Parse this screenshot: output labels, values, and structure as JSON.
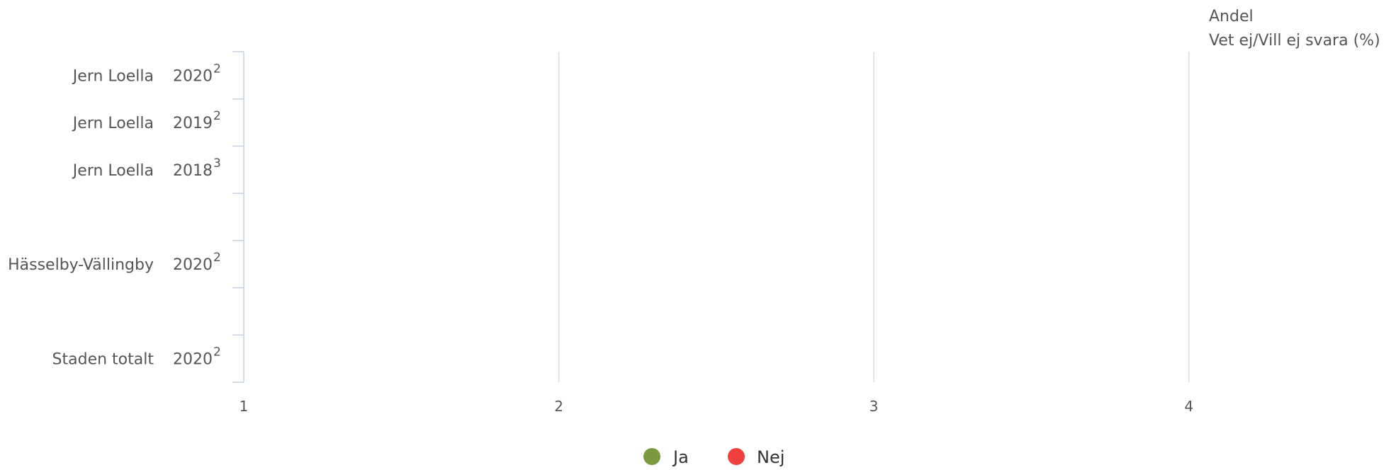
{
  "chart_data": {
    "type": "bar",
    "orientation": "horizontal",
    "title": "Andel",
    "subtitle": "Vet ej/Vill ej svara (%)",
    "categories": [
      {
        "name": "Jern Loella",
        "year": "2020",
        "sup": "2"
      },
      {
        "name": "Jern Loella",
        "year": "2019",
        "sup": "2"
      },
      {
        "name": "Jern Loella",
        "year": "2018",
        "sup": "3"
      },
      {
        "name": "",
        "year": "",
        "sup": ""
      },
      {
        "name": "Hässelby-Vällingby",
        "year": "2020",
        "sup": "2"
      },
      {
        "name": "",
        "year": "",
        "sup": ""
      },
      {
        "name": "Staden totalt",
        "year": "2020",
        "sup": "2"
      }
    ],
    "x_ticks": [
      "1",
      "2",
      "3",
      "4"
    ],
    "xlim": [
      1,
      4.5
    ],
    "grid": true,
    "series": [
      {
        "name": "Ja",
        "color": "#7a9a40",
        "values": [
          null,
          null,
          null,
          null,
          null,
          null,
          null
        ]
      },
      {
        "name": "Nej",
        "color": "#f04040",
        "values": [
          null,
          null,
          null,
          null,
          null,
          null,
          null
        ]
      }
    ],
    "legend_position": "bottom-center"
  }
}
